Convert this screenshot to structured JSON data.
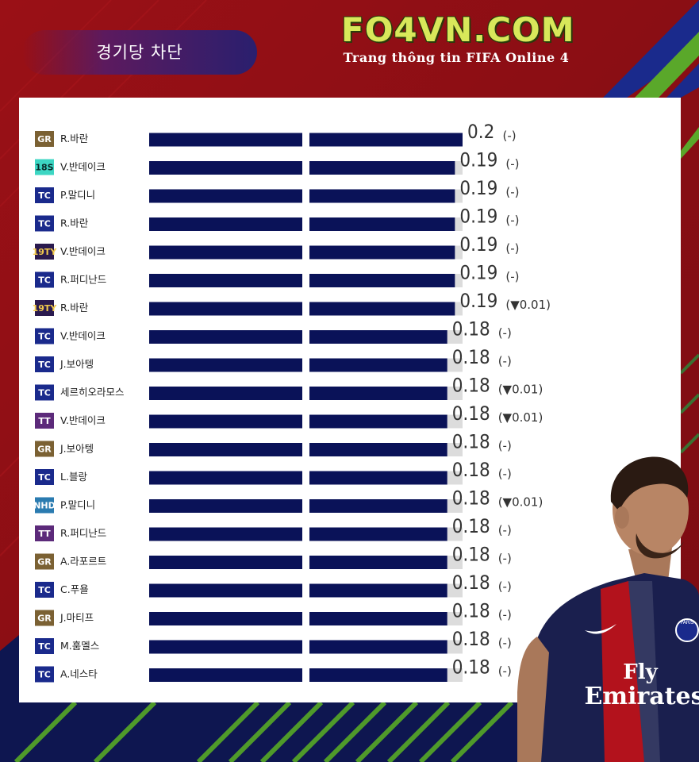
{
  "header": {
    "title": "경기당 차단",
    "logo_main": "FO4VN.COM",
    "logo_sub": "Trang thông tin FIFA Online 4"
  },
  "colors": {
    "bar": "#0a1258",
    "track": "#dcdcdc",
    "badge": {
      "GR": {
        "bg": "#7b6133",
        "fg": "#ffffff"
      },
      "18S": {
        "bg": "#3dd6c3",
        "fg": "#0a2a2a"
      },
      "TC": {
        "bg": "#1a2a8c",
        "fg": "#ffffff"
      },
      "19TY": {
        "bg": "#2a1a4e",
        "fg": "#f2c94c"
      },
      "TT": {
        "bg": "#5c2a7a",
        "fg": "#ffffff"
      },
      "NHD": {
        "bg": "#2a7bb0",
        "fg": "#ffffff"
      }
    }
  },
  "chart_data": {
    "type": "bar",
    "orientation": "horizontal",
    "title": "경기당 차단",
    "xlim": [
      0,
      0.2
    ],
    "grid": false,
    "rows": [
      {
        "badge": "GR",
        "player": "R.바란",
        "value": 0.2,
        "value_label": "0.2",
        "change": "(-)"
      },
      {
        "badge": "18S",
        "player": "V.반데이크",
        "value": 0.19,
        "value_label": "0.19",
        "change": "(-)"
      },
      {
        "badge": "TC",
        "player": "P.말디니",
        "value": 0.19,
        "value_label": "0.19",
        "change": "(-)"
      },
      {
        "badge": "TC",
        "player": "R.바란",
        "value": 0.19,
        "value_label": "0.19",
        "change": "(-)"
      },
      {
        "badge": "19TY",
        "player": "V.반데이크",
        "value": 0.19,
        "value_label": "0.19",
        "change": "(-)"
      },
      {
        "badge": "TC",
        "player": "R.퍼디난드",
        "value": 0.19,
        "value_label": "0.19",
        "change": "(-)"
      },
      {
        "badge": "19TY",
        "player": "R.바란",
        "value": 0.19,
        "value_label": "0.19",
        "change": "(▼0.01)"
      },
      {
        "badge": "TC",
        "player": "V.반데이크",
        "value": 0.18,
        "value_label": "0.18",
        "change": "(-)"
      },
      {
        "badge": "TC",
        "player": "J.보아텡",
        "value": 0.18,
        "value_label": "0.18",
        "change": "(-)"
      },
      {
        "badge": "TC",
        "player": "세르히오라모스",
        "value": 0.18,
        "value_label": "0.18",
        "change": "(▼0.01)"
      },
      {
        "badge": "TT",
        "player": "V.반데이크",
        "value": 0.18,
        "value_label": "0.18",
        "change": "(▼0.01)"
      },
      {
        "badge": "GR",
        "player": "J.보아텡",
        "value": 0.18,
        "value_label": "0.18",
        "change": "(-)"
      },
      {
        "badge": "TC",
        "player": "L.블랑",
        "value": 0.18,
        "value_label": "0.18",
        "change": "(-)"
      },
      {
        "badge": "NHD",
        "player": "P.말디니",
        "value": 0.18,
        "value_label": "0.18",
        "change": "(▼0.01)"
      },
      {
        "badge": "TT",
        "player": "R.퍼디난드",
        "value": 0.18,
        "value_label": "0.18",
        "change": "(-)"
      },
      {
        "badge": "GR",
        "player": "A.라포르트",
        "value": 0.18,
        "value_label": "0.18",
        "change": "(-)"
      },
      {
        "badge": "TC",
        "player": "C.푸욜",
        "value": 0.18,
        "value_label": "0.18",
        "change": "(-)"
      },
      {
        "badge": "GR",
        "player": "J.마티프",
        "value": 0.18,
        "value_label": "0.18",
        "change": "(-)"
      },
      {
        "badge": "TC",
        "player": "M.훔멜스",
        "value": 0.18,
        "value_label": "0.18",
        "change": "(-)"
      },
      {
        "badge": "TC",
        "player": "A.네스타",
        "value": 0.18,
        "value_label": "0.18",
        "change": "(-)"
      }
    ]
  },
  "player_photo": {
    "jersey_sponsor_line1": "Fly",
    "jersey_sponsor_line2": "Emirates",
    "crest": "PARIS"
  }
}
